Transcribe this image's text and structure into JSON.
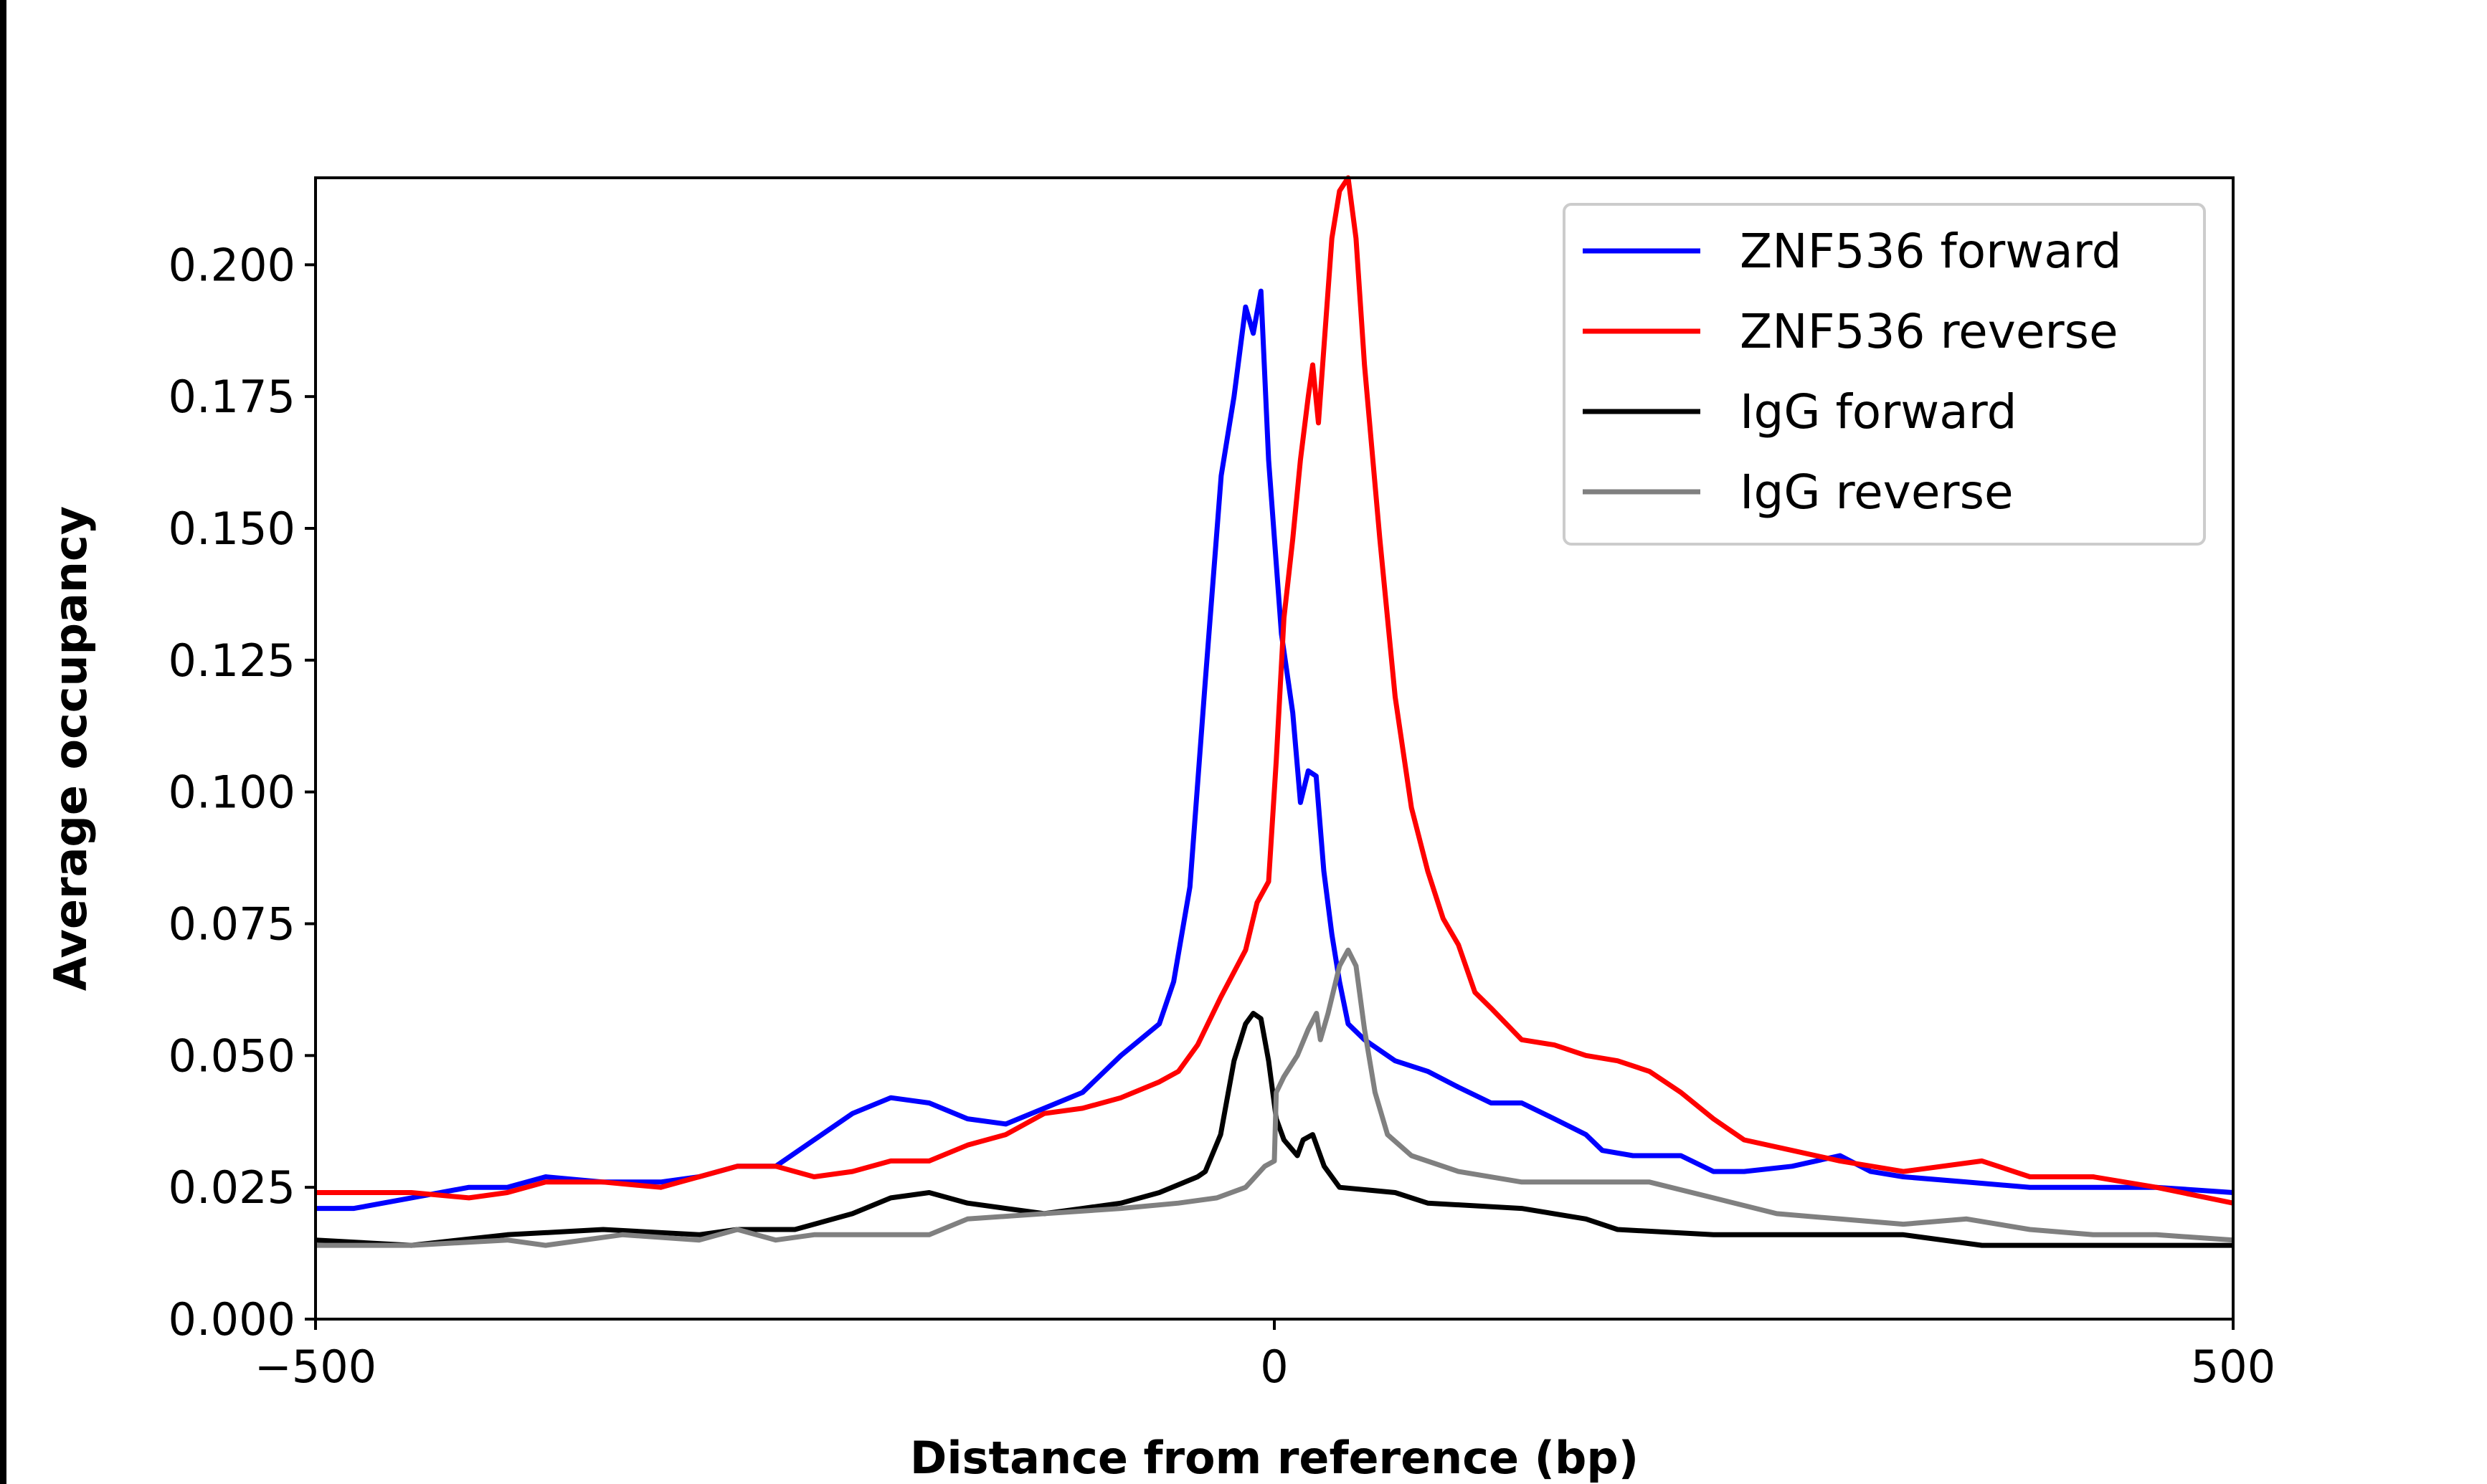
{
  "chart_data": {
    "type": "line",
    "title": "",
    "xlabel": "Distance from reference (bp)",
    "ylabel": "Average occupancy",
    "xlim": [
      -500,
      500
    ],
    "ylim": [
      0,
      0.2165
    ],
    "xticks": [
      -500,
      0,
      500
    ],
    "xtick_labels": [
      "−500",
      "0",
      "500"
    ],
    "yticks": [
      0,
      0.025,
      0.05,
      0.075,
      0.1,
      0.125,
      0.15,
      0.175,
      0.2
    ],
    "ytick_labels": [
      "0.000",
      "0.025",
      "0.050",
      "0.075",
      "0.100",
      "0.125",
      "0.150",
      "0.175",
      "0.200"
    ],
    "grid": false,
    "legend_position": "top-right",
    "series": [
      {
        "name": "ZNF536 forward",
        "color": "#0000ff",
        "x": [
          -500,
          -480,
          -450,
          -420,
          -400,
          -380,
          -350,
          -320,
          -300,
          -280,
          -260,
          -240,
          -220,
          -200,
          -180,
          -160,
          -140,
          -120,
          -100,
          -80,
          -60,
          -52.5,
          -44,
          -36,
          -27.7,
          -21,
          -15,
          -11,
          -7,
          -3,
          3.7,
          9.6,
          13.6,
          17.7,
          21.8,
          25.8,
          30,
          34,
          38.5,
          47,
          63,
          80,
          96,
          113,
          129,
          146,
          162.5,
          171,
          187,
          212,
          229,
          245,
          270,
          295,
          311,
          328,
          361,
          394,
          427,
          460,
          500
        ],
        "y": [
          0.021,
          0.021,
          0.023,
          0.025,
          0.025,
          0.027,
          0.026,
          0.026,
          0.027,
          0.029,
          0.029,
          0.034,
          0.039,
          0.042,
          0.041,
          0.038,
          0.037,
          0.04,
          0.043,
          0.05,
          0.056,
          0.064,
          0.082,
          0.121,
          0.16,
          0.175,
          0.192,
          0.187,
          0.195,
          0.163,
          0.13,
          0.115,
          0.098,
          0.104,
          0.103,
          0.085,
          0.073,
          0.064,
          0.056,
          0.053,
          0.049,
          0.047,
          0.044,
          0.041,
          0.041,
          0.038,
          0.035,
          0.032,
          0.031,
          0.031,
          0.028,
          0.028,
          0.029,
          0.031,
          0.028,
          0.027,
          0.026,
          0.025,
          0.025,
          0.025,
          0.024
        ]
      },
      {
        "name": "ZNF536 reverse",
        "color": "#ff0000",
        "x": [
          -500,
          -450,
          -420,
          -400,
          -380,
          -350,
          -320,
          -300,
          -280,
          -260,
          -240,
          -220,
          -200,
          -180,
          -160,
          -140,
          -120,
          -100,
          -80,
          -60,
          -50,
          -40,
          -28,
          -15,
          -9,
          -3,
          1,
          5,
          9.6,
          13.6,
          17.7,
          20,
          23,
          26,
          30,
          34,
          38.5,
          42.6,
          47,
          55,
          63,
          71.5,
          80,
          88,
          96,
          104.6,
          113,
          129,
          146,
          162.5,
          179,
          195.6,
          212,
          229,
          245,
          270,
          295,
          328,
          369,
          394,
          427,
          460,
          500
        ],
        "y": [
          0.024,
          0.024,
          0.023,
          0.024,
          0.026,
          0.026,
          0.025,
          0.027,
          0.029,
          0.029,
          0.027,
          0.028,
          0.03,
          0.03,
          0.033,
          0.035,
          0.039,
          0.04,
          0.042,
          0.045,
          0.047,
          0.052,
          0.061,
          0.07,
          0.079,
          0.083,
          0.106,
          0.133,
          0.148,
          0.163,
          0.175,
          0.181,
          0.17,
          0.185,
          0.205,
          0.214,
          0.2165,
          0.205,
          0.181,
          0.148,
          0.118,
          0.097,
          0.085,
          0.076,
          0.071,
          0.062,
          0.059,
          0.053,
          0.052,
          0.05,
          0.049,
          0.047,
          0.043,
          0.038,
          0.034,
          0.032,
          0.03,
          0.028,
          0.03,
          0.027,
          0.027,
          0.025,
          0.022
        ]
      },
      {
        "name": "IgG forward",
        "color": "#000000",
        "x": [
          -500,
          -450,
          -400,
          -350,
          -300,
          -280,
          -250,
          -220,
          -200,
          -180,
          -160,
          -140,
          -120,
          -100,
          -80,
          -60,
          -40,
          -36,
          -28,
          -21,
          -15,
          -11,
          -7,
          -3,
          1,
          5,
          12,
          15,
          20,
          26,
          34,
          63,
          80,
          129,
          162.5,
          179,
          229,
          295,
          328,
          369,
          500
        ],
        "y": [
          0.015,
          0.014,
          0.016,
          0.017,
          0.016,
          0.017,
          0.017,
          0.02,
          0.023,
          0.024,
          0.022,
          0.021,
          0.02,
          0.021,
          0.022,
          0.024,
          0.027,
          0.028,
          0.035,
          0.049,
          0.056,
          0.058,
          0.057,
          0.049,
          0.038,
          0.034,
          0.031,
          0.034,
          0.035,
          0.029,
          0.025,
          0.024,
          0.022,
          0.021,
          0.019,
          0.017,
          0.016,
          0.016,
          0.016,
          0.014,
          0.014
        ]
      },
      {
        "name": "IgG reverse",
        "color": "#808080",
        "x": [
          -500,
          -450,
          -400,
          -380,
          -340,
          -300,
          -280,
          -260,
          -240,
          -200,
          -180,
          -160,
          -120,
          -80,
          -50,
          -30,
          -15,
          -5,
          0,
          1,
          5,
          12,
          17.7,
          22,
          24,
          28,
          34,
          38.5,
          42.6,
          47,
          52.5,
          59,
          71.5,
          96,
          129,
          162.5,
          195.6,
          229,
          262,
          295,
          328,
          361,
          394,
          427,
          460,
          500
        ],
        "y": [
          0.014,
          0.014,
          0.015,
          0.014,
          0.016,
          0.015,
          0.017,
          0.015,
          0.016,
          0.016,
          0.016,
          0.019,
          0.02,
          0.021,
          0.022,
          0.023,
          0.025,
          0.029,
          0.03,
          0.043,
          0.046,
          0.05,
          0.055,
          0.058,
          0.053,
          0.058,
          0.067,
          0.07,
          0.067,
          0.055,
          0.043,
          0.035,
          0.031,
          0.028,
          0.026,
          0.026,
          0.026,
          0.023,
          0.02,
          0.019,
          0.018,
          0.019,
          0.017,
          0.016,
          0.016,
          0.015
        ]
      }
    ]
  }
}
